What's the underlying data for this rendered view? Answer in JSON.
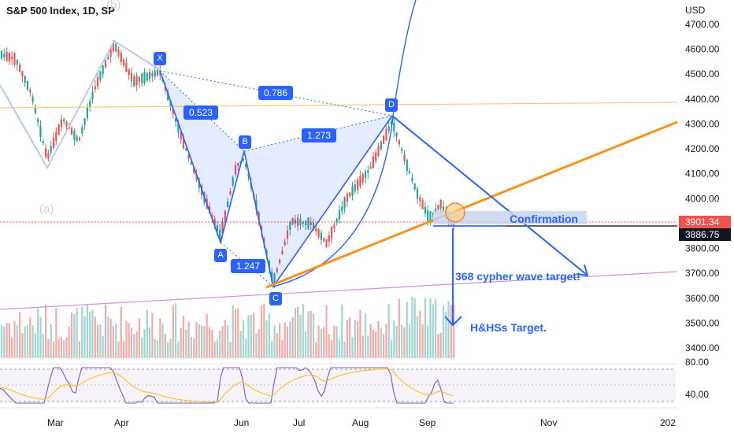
{
  "header": {
    "title": "S&P 500 Index, 1D, SP"
  },
  "wave_labels": {
    "b": "(b)",
    "a": "(a)"
  },
  "price_axis": {
    "currency": "USD",
    "ticks": [
      "4700.00",
      "4600.00",
      "4500.00",
      "4400.00",
      "4300.00",
      "4200.00",
      "4100.00",
      "4000.00",
      "3800.00",
      "3700.00",
      "3600.00",
      "3500.00",
      "3400.00"
    ],
    "current_price": "3901.34",
    "crosshair_price": "3886.75"
  },
  "time_axis": {
    "ticks": [
      "Mar",
      "Apr",
      "Jun",
      "Jul",
      "Aug",
      "Sep",
      "Nov",
      "202"
    ]
  },
  "pattern_points": {
    "X": "X",
    "A": "A",
    "B": "B",
    "C": "C",
    "D": "D"
  },
  "ratios": {
    "xb": "0.523",
    "xd": "0.786",
    "bd": "1.273",
    "ac": "1.247"
  },
  "annotations": {
    "confirmation": "Confirmation",
    "cypher_target": "368 cypher wave target!",
    "hhs_target": "H&HSs Target."
  },
  "rsi_axis": {
    "ticks": [
      "80.00",
      "40.00"
    ]
  },
  "colors": {
    "up": "#26a69a",
    "down": "#ef5350",
    "pattern": "#2962ff",
    "trend": "#f7931a",
    "resistance": "#f5c77e",
    "rsi": "#7e57c2",
    "rsi_ma": "#f5c518"
  }
}
